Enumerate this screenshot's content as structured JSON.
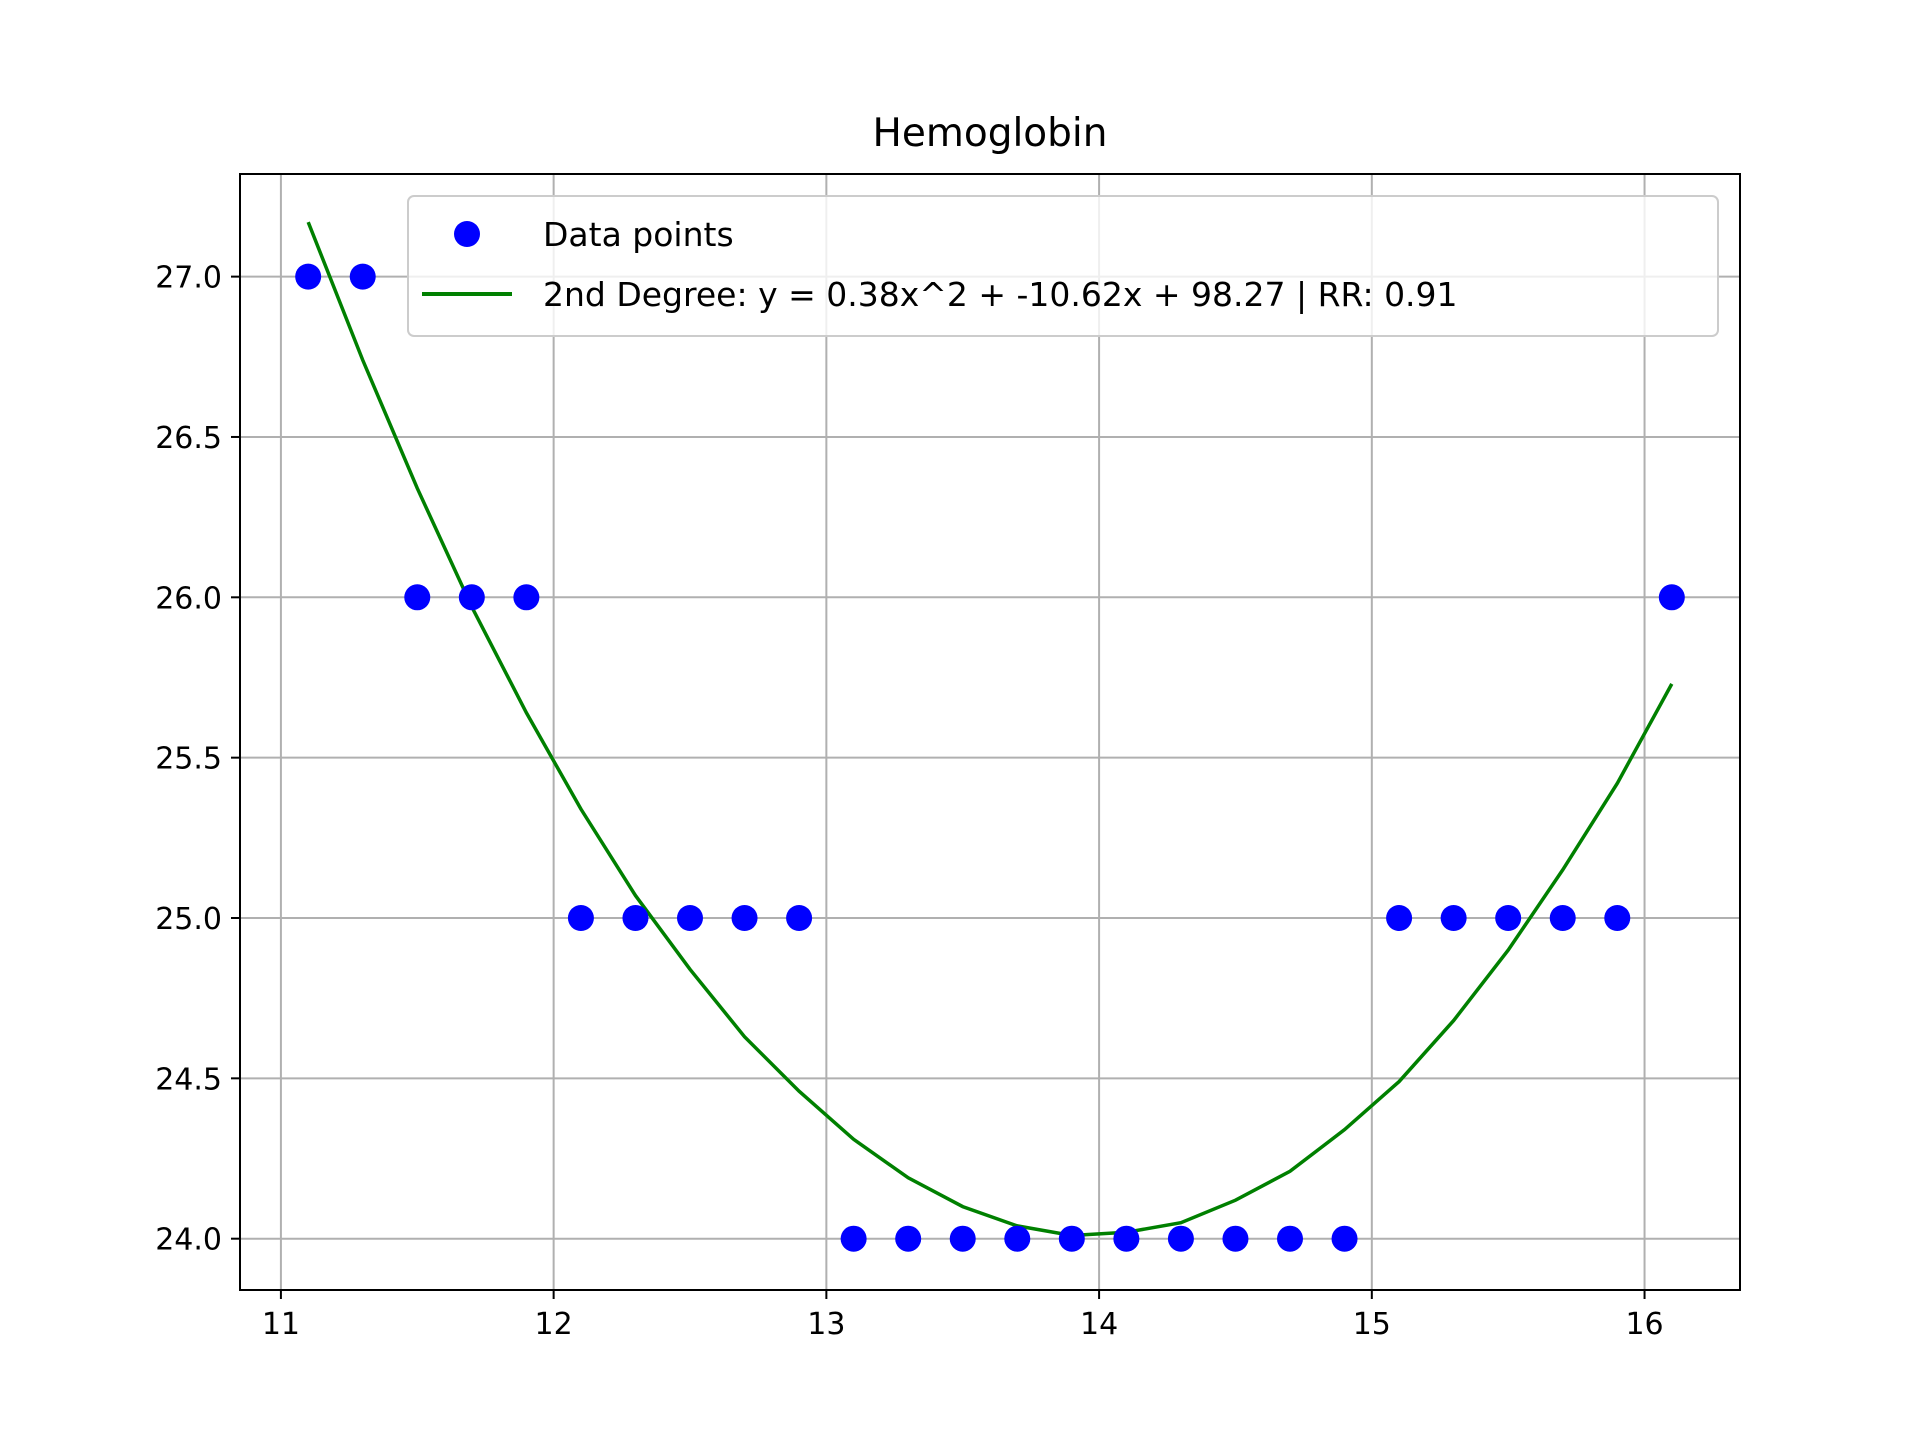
{
  "chart_data": {
    "type": "scatter",
    "title": "Hemoglobin",
    "xlabel": "",
    "ylabel": "",
    "xlim": [
      10.85,
      16.35
    ],
    "ylim": [
      23.84,
      27.32
    ],
    "xticks": [
      11,
      12,
      13,
      14,
      15,
      16
    ],
    "xtick_labels": [
      "11",
      "12",
      "13",
      "14",
      "15",
      "16"
    ],
    "yticks": [
      24.0,
      24.5,
      25.0,
      25.5,
      26.0,
      26.5,
      27.0
    ],
    "ytick_labels": [
      "24.0",
      "24.5",
      "25.0",
      "25.5",
      "26.0",
      "26.5",
      "27.0"
    ],
    "grid": true,
    "legend_position": "top-right",
    "series": [
      {
        "name": "Data points",
        "kind": "scatter",
        "color": "#0000ff",
        "x": [
          11.1,
          11.3,
          11.5,
          11.7,
          11.9,
          12.1,
          12.3,
          12.5,
          12.7,
          12.9,
          13.1,
          13.3,
          13.5,
          13.7,
          13.9,
          14.1,
          14.3,
          14.5,
          14.7,
          14.9,
          15.1,
          15.3,
          15.5,
          15.7,
          15.9,
          16.1
        ],
        "y": [
          27,
          27,
          26,
          26,
          26,
          25,
          25,
          25,
          25,
          25,
          24,
          24,
          24,
          24,
          24,
          24,
          24,
          24,
          24,
          24,
          25,
          25,
          25,
          25,
          25,
          26
        ]
      },
      {
        "name": "2nd Degree: y = 0.38x^2 + -10.62x + 98.27 | RR: 0.91",
        "kind": "line",
        "color": "#008000",
        "x": [
          11.1,
          11.3,
          11.5,
          11.7,
          11.9,
          12.1,
          12.3,
          12.5,
          12.7,
          12.9,
          13.1,
          13.3,
          13.5,
          13.7,
          13.9,
          14.1,
          14.3,
          14.5,
          14.7,
          14.9,
          15.1,
          15.3,
          15.5,
          15.7,
          15.9,
          16.1
        ],
        "y": [
          27.17,
          26.74,
          26.34,
          25.97,
          25.64,
          25.34,
          25.07,
          24.84,
          24.63,
          24.46,
          24.31,
          24.19,
          24.1,
          24.04,
          24.01,
          24.02,
          24.05,
          24.12,
          24.21,
          24.34,
          24.49,
          24.68,
          24.9,
          25.15,
          25.42,
          25.73
        ]
      }
    ]
  }
}
